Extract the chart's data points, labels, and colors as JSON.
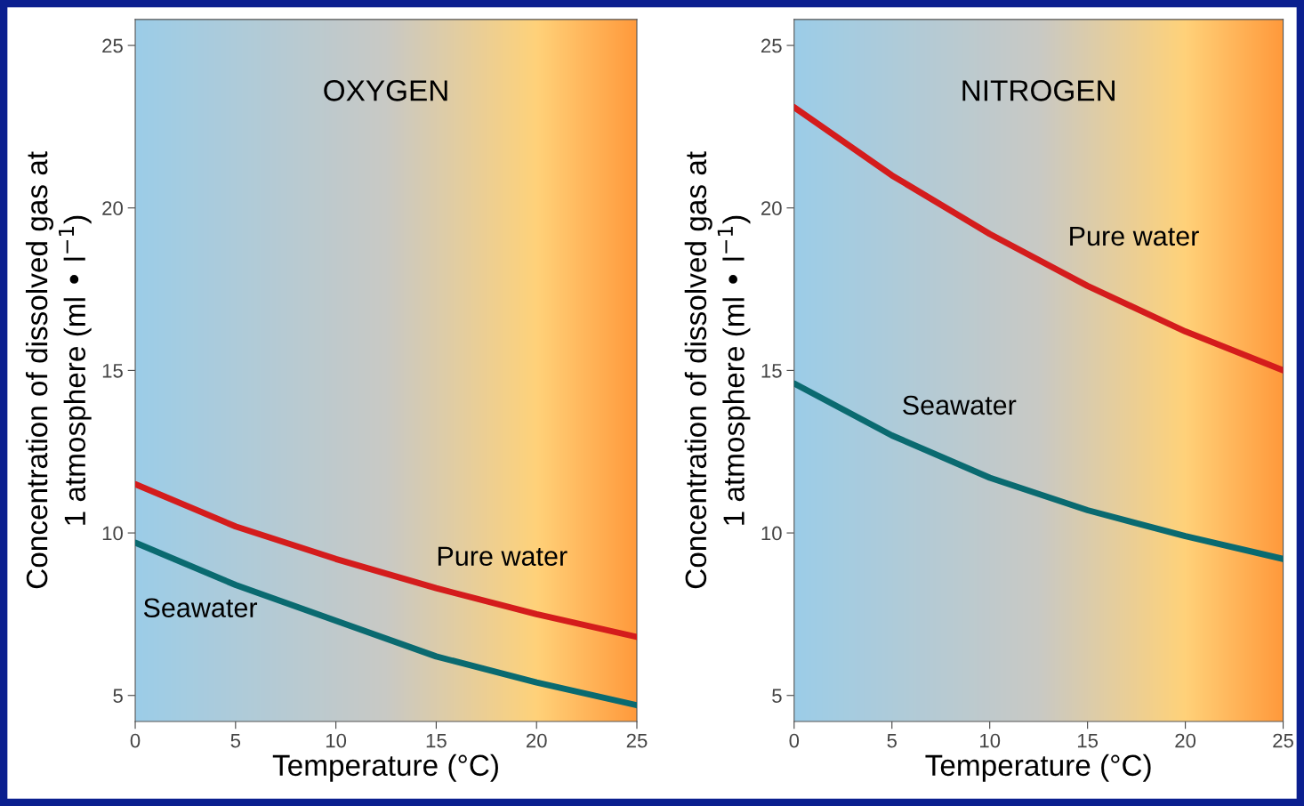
{
  "chart_data": [
    {
      "type": "line",
      "title": "OXYGEN",
      "xlabel": "Temperature (°C)",
      "ylabel": "Concentration of dissolved gas at\n1 atmosphere (ml • l$^{−1}$)",
      "x": [
        0,
        5,
        10,
        15,
        20,
        25
      ],
      "xlim": [
        0,
        25
      ],
      "xticks": [
        0,
        5,
        10,
        15,
        20,
        25
      ],
      "ylim": [
        4.2,
        25.8
      ],
      "yticks": [
        5,
        10,
        15,
        20,
        25
      ],
      "grid": false,
      "legend": false,
      "series": [
        {
          "name": "Pure water",
          "color": "#d41c1c",
          "values": [
            11.5,
            10.2,
            9.2,
            8.3,
            7.5,
            6.8
          ]
        },
        {
          "name": "Seawater",
          "color": "#0a6a70",
          "values": [
            9.7,
            8.4,
            7.3,
            6.2,
            5.4,
            4.7
          ]
        }
      ]
    },
    {
      "type": "line",
      "title": "NITROGEN",
      "xlabel": "Temperature (°C)",
      "ylabel": "Concentration of dissolved gas at\n1 atmosphere (ml • l$^{−1}$)",
      "x": [
        0,
        5,
        10,
        15,
        20,
        25
      ],
      "xlim": [
        0,
        25
      ],
      "xticks": [
        0,
        5,
        10,
        15,
        20,
        25
      ],
      "ylim": [
        4.2,
        25.8
      ],
      "yticks": [
        5,
        10,
        15,
        20,
        25
      ],
      "grid": false,
      "legend": false,
      "series": [
        {
          "name": "Pure water",
          "color": "#d41c1c",
          "values": [
            23.1,
            21.0,
            19.2,
            17.6,
            16.2,
            15.0
          ]
        },
        {
          "name": "Seawater",
          "color": "#0a6a70",
          "values": [
            14.6,
            13.0,
            11.7,
            10.7,
            9.9,
            9.2
          ]
        }
      ]
    }
  ]
}
